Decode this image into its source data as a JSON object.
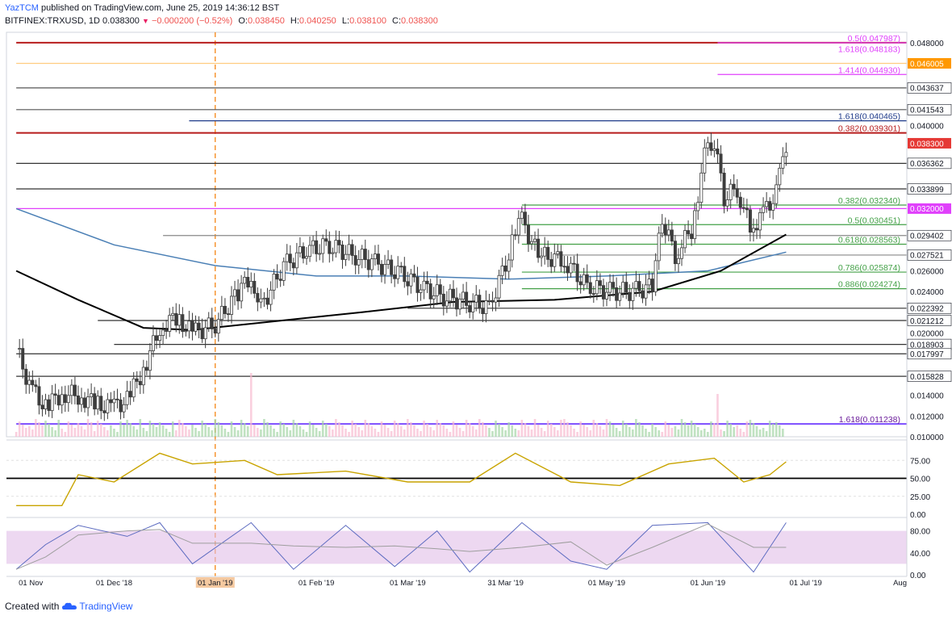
{
  "header": {
    "user": "YazTCM",
    "published": "published on TradingView.com, June 25, 2019 14:36:12 BST",
    "symbol": "BITFINEX:TRXUSD, 1D",
    "price": "0.038300",
    "change": "−0.000200 (−0.52%)",
    "open_label": "O:",
    "open": "0.038450",
    "high_label": "H:",
    "high": "0.040250",
    "low_label": "L:",
    "low": "0.038100",
    "close_label": "C:",
    "close": "0.038300"
  },
  "footer": {
    "created_with": "Created with",
    "brand": "TradingView"
  },
  "colors": {
    "up": "#26a69a",
    "down": "#ef5350",
    "candle": "#3d3d3d",
    "red_line": "#b71c1c",
    "magenta": "#e040fb",
    "blue_line": "#1e3a8a",
    "ma200": "#000000",
    "ma_blue": "#4a7fb5",
    "rsi": "#c9a400",
    "volume_ma": "#d4a04a"
  },
  "chart_data": [
    {
      "type": "line",
      "title": "BITFINEX:TRXUSD, 1D",
      "x_ticks": [
        "01 Nov",
        "01 Dec '18",
        "01 Jan '19",
        "01 Feb '19",
        "01 Mar '19",
        "31 Mar '19",
        "01 May '19",
        "01 Jun '19",
        "01 Jul '19",
        "Aug"
      ],
      "y_ticks": [
        "0.048000",
        "0.040000",
        "0.026000",
        "0.024000",
        "0.020000",
        "0.014000",
        "0.012000",
        "0.010000"
      ],
      "ylim": [
        0.01,
        0.049
      ],
      "price_path": [
        {
          "date": "2018-11-01",
          "close": 0.0185
        },
        {
          "date": "2018-11-05",
          "close": 0.015
        },
        {
          "date": "2018-11-10",
          "close": 0.0128
        },
        {
          "date": "2018-11-15",
          "close": 0.0142
        },
        {
          "date": "2018-11-20",
          "close": 0.014
        },
        {
          "date": "2018-11-25",
          "close": 0.0132
        },
        {
          "date": "2018-11-30",
          "close": 0.0128
        },
        {
          "date": "2018-12-05",
          "close": 0.0135
        },
        {
          "date": "2018-12-10",
          "close": 0.0165
        },
        {
          "date": "2018-12-15",
          "close": 0.0205
        },
        {
          "date": "2018-12-20",
          "close": 0.0215
        },
        {
          "date": "2018-12-25",
          "close": 0.02
        },
        {
          "date": "2019-01-01",
          "close": 0.0208
        },
        {
          "date": "2019-01-07",
          "close": 0.0235
        },
        {
          "date": "2019-01-12",
          "close": 0.0255
        },
        {
          "date": "2019-01-15",
          "close": 0.0225
        },
        {
          "date": "2019-01-22",
          "close": 0.0265
        },
        {
          "date": "2019-01-29",
          "close": 0.028
        },
        {
          "date": "2019-02-05",
          "close": 0.0285
        },
        {
          "date": "2019-02-12",
          "close": 0.0275
        },
        {
          "date": "2019-02-19",
          "close": 0.0268
        },
        {
          "date": "2019-02-26",
          "close": 0.0258
        },
        {
          "date": "2019-03-05",
          "close": 0.0245
        },
        {
          "date": "2019-03-12",
          "close": 0.0235
        },
        {
          "date": "2019-03-19",
          "close": 0.023
        },
        {
          "date": "2019-03-26",
          "close": 0.0225
        },
        {
          "date": "2019-04-01",
          "close": 0.0275
        },
        {
          "date": "2019-04-04",
          "close": 0.0315
        },
        {
          "date": "2019-04-10",
          "close": 0.0275
        },
        {
          "date": "2019-04-18",
          "close": 0.027
        },
        {
          "date": "2019-04-25",
          "close": 0.0245
        },
        {
          "date": "2019-05-02",
          "close": 0.024
        },
        {
          "date": "2019-05-09",
          "close": 0.024
        },
        {
          "date": "2019-05-15",
          "close": 0.0245
        },
        {
          "date": "2019-05-18",
          "close": 0.031
        },
        {
          "date": "2019-05-22",
          "close": 0.0275
        },
        {
          "date": "2019-05-27",
          "close": 0.03
        },
        {
          "date": "2019-05-31",
          "close": 0.037
        },
        {
          "date": "2019-06-03",
          "close": 0.0385
        },
        {
          "date": "2019-06-06",
          "close": 0.033
        },
        {
          "date": "2019-06-10",
          "close": 0.034
        },
        {
          "date": "2019-06-14",
          "close": 0.03
        },
        {
          "date": "2019-06-18",
          "close": 0.0315
        },
        {
          "date": "2019-06-22",
          "close": 0.0335
        },
        {
          "date": "2019-06-25",
          "close": 0.0383
        }
      ],
      "annotations": [
        {
          "label": "0.5 (0.047987)",
          "y": 0.047987,
          "color": "#e040fb"
        },
        {
          "label": "1.618 (0.048183)",
          "y": 0.048183,
          "color": "#e040fb"
        },
        {
          "label": "1.414 (0.044930)",
          "y": 0.04493,
          "color": "#e040fb"
        },
        {
          "label": "1.618 (0.040465)",
          "y": 0.040465,
          "color": "#1e3a8a"
        },
        {
          "label": "0.382 (0.039301)",
          "y": 0.039301,
          "color": "#b71c1c"
        },
        {
          "label": "0.382 (0.032340)",
          "y": 0.03234,
          "color": "#43a047"
        },
        {
          "label": "0.5 (0.030451)",
          "y": 0.030451,
          "color": "#43a047"
        },
        {
          "label": "0.618 (0.028563)",
          "y": 0.028563,
          "color": "#43a047"
        },
        {
          "label": "0.786 (0.025874)",
          "y": 0.025874,
          "color": "#43a047"
        },
        {
          "label": "0.886 (0.024274)",
          "y": 0.024274,
          "color": "#43a047"
        },
        {
          "label": "1.618 (0.011238)",
          "y": 0.011238,
          "color": "#6a1b9a"
        }
      ],
      "price_tags": [
        {
          "label": "0.046005",
          "y": 0.046005,
          "bg": "#ff9800"
        },
        {
          "label": "0.043637",
          "y": 0.043637,
          "bg": "#ffffff"
        },
        {
          "label": "0.041543",
          "y": 0.041543,
          "bg": "#ffffff"
        },
        {
          "label": "0.038300",
          "y": 0.0383,
          "bg": "#e53935"
        },
        {
          "label": "0.036362",
          "y": 0.036362,
          "bg": "#ffffff"
        },
        {
          "label": "0.033899",
          "y": 0.033899,
          "bg": "#ffffff"
        },
        {
          "label": "0.032000",
          "y": 0.032,
          "bg": "#e040fb"
        },
        {
          "label": "0.029402",
          "y": 0.029402,
          "bg": "#ffffff"
        },
        {
          "label": "0.027521",
          "y": 0.027521,
          "bg": "#ffffff"
        },
        {
          "label": "0.022392",
          "y": 0.022392,
          "bg": "#ffffff"
        },
        {
          "label": "0.021212",
          "y": 0.021212,
          "bg": "#ffffff"
        },
        {
          "label": "0.018903",
          "y": 0.018903,
          "bg": "#ffffff"
        },
        {
          "label": "0.017997",
          "y": 0.017997,
          "bg": "#ffffff"
        },
        {
          "label": "0.015828",
          "y": 0.015828,
          "bg": "#ffffff"
        }
      ],
      "horizontal_lines": [
        {
          "y": 0.048,
          "color": "#b71c1c",
          "from": "2018-11-01"
        },
        {
          "y": 0.047987,
          "color": "#e040fb",
          "from": "2019-06-04"
        },
        {
          "y": 0.046005,
          "color": "#ffcc80",
          "from": "2018-11-01"
        },
        {
          "y": 0.04493,
          "color": "#e040fb",
          "from": "2019-06-04"
        },
        {
          "y": 0.043637,
          "color": "#555555",
          "from": "2018-11-01"
        },
        {
          "y": 0.041543,
          "color": "#555555",
          "from": "2018-11-01"
        },
        {
          "y": 0.040465,
          "color": "#1e3a8a",
          "from": "2018-12-24"
        },
        {
          "y": 0.039301,
          "color": "#b71c1c",
          "from": "2018-11-01"
        },
        {
          "y": 0.036362,
          "color": "#333333",
          "from": "2018-11-01"
        },
        {
          "y": 0.033899,
          "color": "#333333",
          "from": "2018-11-01"
        },
        {
          "y": 0.03234,
          "color": "#43a047",
          "from": "2019-04-05"
        },
        {
          "y": 0.032,
          "color": "#e040fb",
          "from": "2018-11-01"
        },
        {
          "y": 0.030451,
          "color": "#43a047",
          "from": "2019-04-05"
        },
        {
          "y": 0.029402,
          "color": "#888888",
          "from": "2018-12-16"
        },
        {
          "y": 0.028563,
          "color": "#43a047",
          "from": "2019-04-05"
        },
        {
          "y": 0.027521,
          "color": "#888888",
          "from": "2019-04-15"
        },
        {
          "y": 0.025874,
          "color": "#43a047",
          "from": "2019-04-05"
        },
        {
          "y": 0.024274,
          "color": "#43a047",
          "from": "2019-04-05"
        },
        {
          "y": 0.022392,
          "color": "#333333",
          "from": "2019-03-01"
        },
        {
          "y": 0.021212,
          "color": "#333333",
          "from": "2018-11-26"
        },
        {
          "y": 0.018903,
          "color": "#333333",
          "from": "2018-12-01"
        },
        {
          "y": 0.017997,
          "color": "#333333",
          "from": "2018-11-01"
        },
        {
          "y": 0.015828,
          "color": "#333333",
          "from": "2018-11-01"
        },
        {
          "y": 0.011238,
          "color": "#7c4dff",
          "from": "2018-11-01"
        }
      ],
      "ma200": [
        {
          "date": "2018-11-01",
          "value": 0.026
        },
        {
          "date": "2018-11-20",
          "value": 0.0232
        },
        {
          "date": "2018-12-10",
          "value": 0.0205
        },
        {
          "date": "2018-12-25",
          "value": 0.0203
        },
        {
          "date": "2019-01-15",
          "value": 0.021
        },
        {
          "date": "2019-02-15",
          "value": 0.022
        },
        {
          "date": "2019-03-15",
          "value": 0.023
        },
        {
          "date": "2019-04-15",
          "value": 0.0232
        },
        {
          "date": "2019-05-15",
          "value": 0.024
        },
        {
          "date": "2019-06-05",
          "value": 0.026
        },
        {
          "date": "2019-06-25",
          "value": 0.0295
        }
      ],
      "ma_blue": [
        {
          "date": "2018-11-01",
          "value": 0.032
        },
        {
          "date": "2018-12-01",
          "value": 0.0285
        },
        {
          "date": "2019-01-01",
          "value": 0.0265
        },
        {
          "date": "2019-02-01",
          "value": 0.0255
        },
        {
          "date": "2019-03-01",
          "value": 0.0255
        },
        {
          "date": "2019-04-01",
          "value": 0.0252
        },
        {
          "date": "2019-05-01",
          "value": 0.0255
        },
        {
          "date": "2019-06-01",
          "value": 0.026
        },
        {
          "date": "2019-06-25",
          "value": 0.0278
        }
      ]
    },
    {
      "type": "line",
      "title": "",
      "y_ticks": [
        "75.00",
        "50.00",
        "25.00",
        "0.00"
      ],
      "ylim": [
        0,
        100
      ],
      "reference_line": 50,
      "rsi": [
        {
          "date": "2018-11-01",
          "value": 12
        },
        {
          "date": "2018-11-15",
          "value": 12
        },
        {
          "date": "2018-11-20",
          "value": 55
        },
        {
          "date": "2018-12-01",
          "value": 45
        },
        {
          "date": "2018-12-15",
          "value": 85
        },
        {
          "date": "2018-12-25",
          "value": 70
        },
        {
          "date": "2019-01-10",
          "value": 75
        },
        {
          "date": "2019-01-20",
          "value": 55
        },
        {
          "date": "2019-02-10",
          "value": 60
        },
        {
          "date": "2019-03-01",
          "value": 45
        },
        {
          "date": "2019-03-20",
          "value": 45
        },
        {
          "date": "2019-04-03",
          "value": 85
        },
        {
          "date": "2019-04-20",
          "value": 45
        },
        {
          "date": "2019-05-05",
          "value": 40
        },
        {
          "date": "2019-05-20",
          "value": 70
        },
        {
          "date": "2019-06-03",
          "value": 78
        },
        {
          "date": "2019-06-12",
          "value": 45
        },
        {
          "date": "2019-06-20",
          "value": 55
        },
        {
          "date": "2019-06-25",
          "value": 73
        }
      ]
    },
    {
      "type": "line",
      "title": "",
      "y_ticks": [
        "80.00",
        "40.00",
        "0.00"
      ],
      "ylim": [
        0,
        100
      ],
      "band": [
        20,
        80
      ],
      "stoch_k": [
        {
          "date": "2018-11-01",
          "value": 10
        },
        {
          "date": "2018-11-10",
          "value": 55
        },
        {
          "date": "2018-11-20",
          "value": 90
        },
        {
          "date": "2018-12-05",
          "value": 70
        },
        {
          "date": "2018-12-15",
          "value": 95
        },
        {
          "date": "2018-12-25",
          "value": 20
        },
        {
          "date": "2019-01-12",
          "value": 95
        },
        {
          "date": "2019-01-25",
          "value": 10
        },
        {
          "date": "2019-02-10",
          "value": 90
        },
        {
          "date": "2019-02-25",
          "value": 15
        },
        {
          "date": "2019-03-10",
          "value": 80
        },
        {
          "date": "2019-03-20",
          "value": 5
        },
        {
          "date": "2019-04-05",
          "value": 95
        },
        {
          "date": "2019-04-20",
          "value": 25
        },
        {
          "date": "2019-05-01",
          "value": 10
        },
        {
          "date": "2019-05-15",
          "value": 90
        },
        {
          "date": "2019-06-01",
          "value": 95
        },
        {
          "date": "2019-06-15",
          "value": 5
        },
        {
          "date": "2019-06-25",
          "value": 95
        }
      ]
    }
  ]
}
